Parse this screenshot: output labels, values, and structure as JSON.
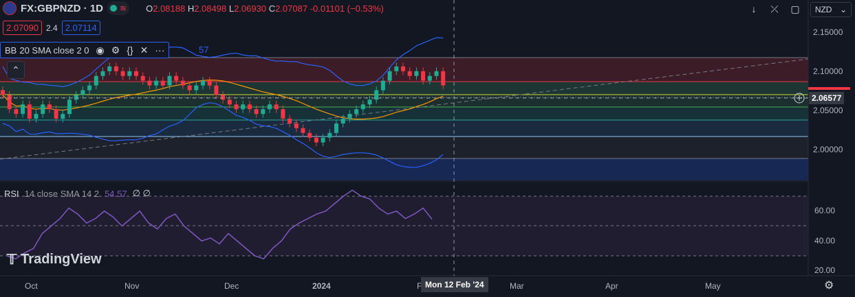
{
  "header": {
    "symbol": "FX:GBPNZD · 1D",
    "ohlc": {
      "o_label": "O",
      "o": "2.08188",
      "h_label": "H",
      "h": "2.08498",
      "l_label": "L",
      "l": "2.06930",
      "c_label": "C",
      "c": "2.07087",
      "change": "-0.01101 (−0.53%)"
    },
    "bid": "2.07090",
    "spread": "2.4",
    "ask": "2.07114",
    "currency_button": "NZD"
  },
  "bb_indicator": {
    "label": "BB",
    "params": "20 SMA close 2 0",
    "trailing": "57"
  },
  "rsi_indicator": {
    "label": "RSI",
    "params": "14 close SMA 14 2",
    "value": "54.57",
    "extra": "∅ ∅"
  },
  "price_axis": {
    "ticks": [
      "2.15000",
      "2.10000",
      "2.05000",
      "2.00000"
    ],
    "crosshair_price": "2.06577"
  },
  "rsi_axis": {
    "ticks": [
      "60.00",
      "40.00",
      "20.00"
    ]
  },
  "time_axis": {
    "ticks": [
      "Oct",
      "Nov",
      "Dec",
      "2024",
      "F",
      "Mar",
      "Apr",
      "May"
    ],
    "crosshair_date": "Mon 12 Feb '24"
  },
  "branding": {
    "logo_text": "TradingView"
  },
  "colors": {
    "up": "#22ab94",
    "down": "#f23645",
    "bb": "#2962ff",
    "sma": "#ff9800",
    "rsi": "#7e57c2"
  },
  "chart_data": {
    "type": "candlestick",
    "symbol": "FX:GBPNZD",
    "interval": "1D",
    "ylim": [
      1.97,
      2.16
    ],
    "close_approx": [
      2.06,
      2.045,
      2.04,
      2.05,
      2.035,
      2.04,
      2.05,
      2.045,
      2.035,
      2.04,
      2.055,
      2.06,
      2.065,
      2.07,
      2.08,
      2.085,
      2.09,
      2.085,
      2.08,
      2.085,
      2.08,
      2.075,
      2.07,
      2.075,
      2.07,
      2.08,
      2.075,
      2.07,
      2.065,
      2.07,
      2.075,
      2.07,
      2.06,
      2.055,
      2.05,
      2.045,
      2.05,
      2.045,
      2.04,
      2.045,
      2.05,
      2.045,
      2.035,
      2.03,
      2.025,
      2.02,
      2.015,
      2.01,
      2.015,
      2.02,
      2.03,
      2.035,
      2.04,
      2.045,
      2.05,
      2.055,
      2.065,
      2.075,
      2.085,
      2.09,
      2.085,
      2.08,
      2.085,
      2.075,
      2.08,
      2.085,
      2.07
    ],
    "rsi_approx": [
      30,
      28,
      32,
      35,
      45,
      50,
      55,
      62,
      58,
      52,
      55,
      60,
      56,
      50,
      55,
      60,
      52,
      48,
      55,
      58,
      50,
      45,
      40,
      42,
      38,
      45,
      40,
      35,
      30,
      28,
      35,
      40,
      48,
      52,
      55,
      58,
      60,
      65,
      70,
      74,
      70,
      68,
      62,
      58,
      60,
      55,
      58,
      62,
      54.57
    ]
  }
}
